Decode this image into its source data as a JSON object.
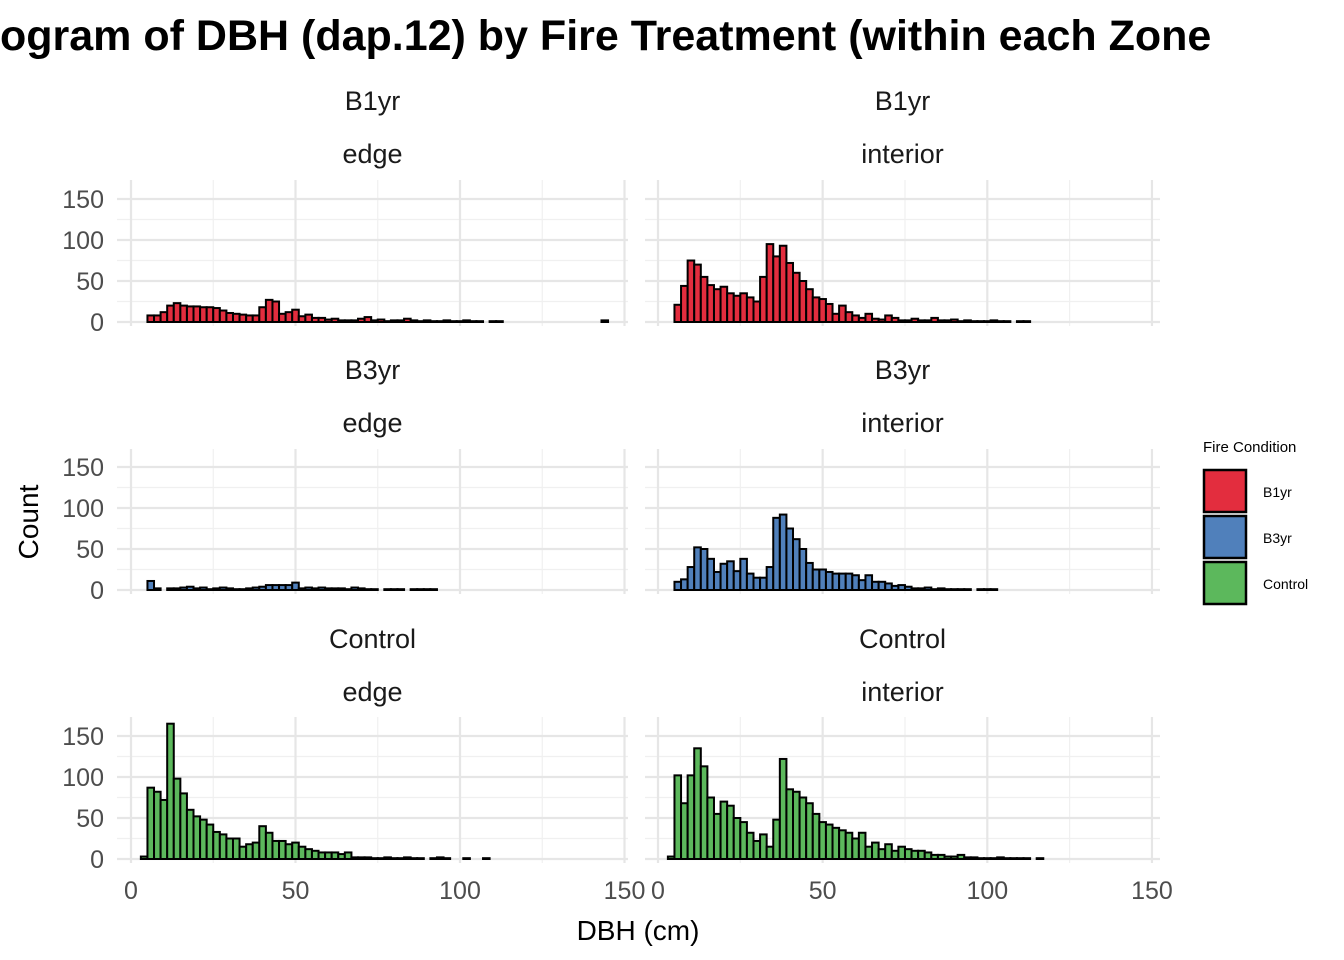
{
  "chart_data": {
    "type": "bar",
    "title": "ogram of DBH (dap.12) by Fire Treatment (within each Zone",
    "xlabel": "DBH (cm)",
    "ylabel": "Count",
    "xlim": [
      0,
      150
    ],
    "ylim": [
      0,
      170
    ],
    "x_ticks": [
      0,
      50,
      100,
      150
    ],
    "x_tick_labels_left": [
      "0",
      "50",
      "100",
      "150"
    ],
    "x_tick_labels_right": [
      "0",
      "50",
      "100",
      "150"
    ],
    "y_ticks": [
      0,
      50,
      100,
      150
    ],
    "y_tick_labels": [
      "0",
      "50",
      "100",
      "150"
    ],
    "grid": true,
    "bin_start": 3,
    "bin_width": 2,
    "legend": {
      "title": "Fire Condition",
      "position": "right",
      "items": [
        {
          "label": "B1yr",
          "color": "#E32D3E"
        },
        {
          "label": "B3yr",
          "color": "#5080BB"
        },
        {
          "label": "Control",
          "color": "#5CB85C"
        }
      ]
    },
    "panels": [
      {
        "row": 0,
        "col": 0,
        "treatment": "B1yr",
        "zone": "edge",
        "color": "#E32D3E",
        "values": [
          0,
          8,
          8,
          12,
          20,
          23,
          20,
          19,
          19,
          18,
          18,
          17,
          14,
          11,
          10,
          9,
          8,
          8,
          18,
          27,
          25,
          10,
          12,
          15,
          7,
          9,
          5,
          5,
          3,
          4,
          2,
          2,
          2,
          4,
          6,
          2,
          3,
          1,
          2,
          2,
          4,
          2,
          1,
          2,
          1,
          1,
          2,
          1,
          1,
          2,
          1,
          1,
          0,
          1,
          1,
          0,
          0,
          0,
          0,
          0,
          0,
          0,
          0,
          0,
          0,
          0,
          0,
          0,
          0,
          0,
          2
        ]
      },
      {
        "row": 0,
        "col": 1,
        "treatment": "B1yr",
        "zone": "interior",
        "color": "#E32D3E",
        "values": [
          0,
          21,
          44,
          75,
          70,
          55,
          45,
          40,
          43,
          35,
          32,
          35,
          30,
          25,
          55,
          95,
          80,
          93,
          72,
          60,
          50,
          40,
          30,
          28,
          22,
          10,
          20,
          12,
          8,
          5,
          10,
          4,
          3,
          8,
          5,
          2,
          2,
          4,
          2,
          2,
          5,
          2,
          2,
          3,
          1,
          2,
          1,
          1,
          1,
          2,
          1,
          1,
          0,
          1,
          1,
          0,
          0,
          0,
          0,
          0,
          0,
          0,
          0,
          0,
          0,
          0,
          0,
          0,
          0,
          0,
          0
        ]
      },
      {
        "row": 1,
        "col": 0,
        "treatment": "B3yr",
        "zone": "edge",
        "color": "#5080BB",
        "values": [
          0,
          11,
          2,
          0,
          2,
          2,
          3,
          4,
          2,
          3,
          1,
          2,
          3,
          2,
          1,
          1,
          2,
          3,
          4,
          6,
          6,
          6,
          6,
          9,
          2,
          3,
          2,
          3,
          2,
          2,
          2,
          1,
          3,
          2,
          1,
          1,
          0,
          1,
          1,
          1,
          0,
          1,
          1,
          1,
          1,
          0,
          0,
          0,
          0,
          0,
          0,
          0,
          0,
          0,
          0,
          0,
          0,
          0,
          0,
          0,
          0,
          0,
          0,
          0,
          0,
          0,
          0,
          0,
          0,
          0,
          0
        ]
      },
      {
        "row": 1,
        "col": 1,
        "treatment": "B3yr",
        "zone": "interior",
        "color": "#5080BB",
        "values": [
          0,
          10,
          13,
          28,
          52,
          50,
          38,
          22,
          32,
          35,
          23,
          38,
          20,
          15,
          15,
          28,
          88,
          92,
          75,
          62,
          50,
          33,
          25,
          25,
          22,
          20,
          20,
          20,
          18,
          12,
          18,
          10,
          10,
          8,
          5,
          6,
          4,
          2,
          2,
          3,
          1,
          2,
          1,
          1,
          1,
          1,
          0,
          1,
          1,
          1,
          0,
          0,
          0,
          0,
          0,
          0,
          0,
          0,
          0,
          0,
          0,
          0,
          0,
          0,
          0,
          0,
          0,
          0,
          0,
          0,
          0
        ]
      },
      {
        "row": 2,
        "col": 0,
        "treatment": "Control",
        "zone": "edge",
        "color": "#5CB85C",
        "values": [
          3,
          87,
          82,
          72,
          165,
          98,
          80,
          60,
          52,
          48,
          42,
          33,
          30,
          25,
          25,
          15,
          18,
          20,
          40,
          32,
          22,
          22,
          18,
          20,
          15,
          12,
          10,
          8,
          8,
          8,
          6,
          8,
          2,
          2,
          2,
          1,
          1,
          2,
          1,
          1,
          2,
          1,
          1,
          0,
          1,
          2,
          1,
          0,
          0,
          1,
          0,
          0,
          1,
          0,
          0,
          0,
          0,
          0,
          0,
          0,
          0,
          0,
          0,
          0,
          0,
          0,
          0,
          0,
          0,
          0,
          0
        ]
      },
      {
        "row": 2,
        "col": 1,
        "treatment": "Control",
        "zone": "interior",
        "color": "#5CB85C",
        "values": [
          3,
          102,
          68,
          102,
          135,
          113,
          75,
          55,
          70,
          65,
          50,
          45,
          32,
          22,
          30,
          15,
          48,
          122,
          85,
          82,
          75,
          68,
          55,
          45,
          42,
          38,
          35,
          32,
          25,
          32,
          15,
          20,
          12,
          18,
          10,
          15,
          12,
          10,
          10,
          8,
          5,
          5,
          3,
          3,
          5,
          2,
          2,
          1,
          1,
          1,
          2,
          1,
          1,
          1,
          1,
          0,
          1,
          0,
          0,
          0,
          0,
          0,
          0,
          0,
          0,
          0,
          0,
          0,
          0,
          0,
          0
        ]
      }
    ]
  }
}
